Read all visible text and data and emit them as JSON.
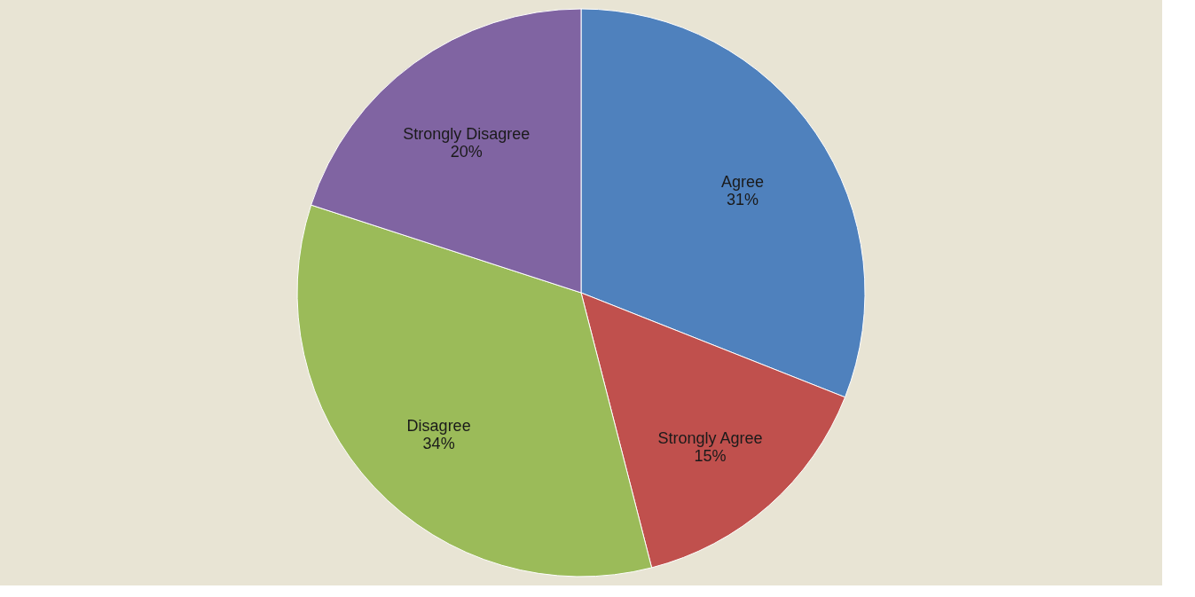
{
  "chart_data": {
    "type": "pie",
    "categories": [
      "Agree",
      "Strongly Agree",
      "Disagree",
      "Strongly Disagree"
    ],
    "values": [
      31,
      15,
      34,
      20
    ],
    "value_labels": [
      "31%",
      "15%",
      "34%",
      "20%"
    ],
    "colors": [
      "#4f81bd",
      "#c0504d",
      "#9bbb59",
      "#8064a2"
    ],
    "legend": false
  }
}
